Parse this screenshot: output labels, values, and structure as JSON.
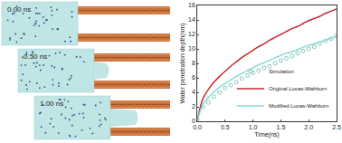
{
  "snapshots": {
    "labels": [
      "0.00 ns",
      "0.50 ns",
      "1.00 ns"
    ]
  },
  "chart_data": {
    "type": "line",
    "x_label": "Time(ns)",
    "y_label": "Water penetration depth(nm)",
    "x": [
      0,
      0.1,
      0.2,
      0.3,
      0.4,
      0.5,
      0.6,
      0.7,
      0.8,
      0.9,
      1.0,
      1.1,
      1.2,
      1.3,
      1.4,
      1.5,
      1.6,
      1.7,
      1.8,
      1.9,
      2.0,
      2.1,
      2.2,
      2.3,
      2.4,
      2.5
    ],
    "series": [
      {
        "name": "Simulation",
        "type": "scatter",
        "marker": "circle-open",
        "color": "#6fb8a8",
        "values": [
          0.3,
          2.0,
          2.6,
          3.4,
          4.0,
          4.6,
          5.0,
          5.4,
          5.9,
          6.3,
          6.7,
          7.0,
          7.4,
          7.6,
          8.0,
          8.4,
          8.7,
          9.0,
          9.4,
          9.7,
          10.0,
          10.3,
          10.7,
          11.1,
          11.4,
          11.8
        ]
      },
      {
        "name": "Original Lucas-Wahburn",
        "type": "line",
        "line_style": "solid",
        "color": "#c8282e",
        "values": [
          0,
          3.1,
          4.4,
          5.4,
          6.2,
          6.9,
          7.6,
          8.2,
          8.8,
          9.3,
          9.8,
          10.3,
          10.7,
          11.2,
          11.6,
          12.0,
          12.4,
          12.8,
          13.1,
          13.5,
          13.9,
          14.2,
          14.5,
          14.9,
          15.2,
          15.5
        ]
      },
      {
        "name": "Modified Lucas-Wahburn",
        "type": "line",
        "line_style": "solid",
        "color": "#86dcd6",
        "values": [
          0,
          2.3,
          3.3,
          4.1,
          4.7,
          5.2,
          5.7,
          6.2,
          6.6,
          7.0,
          7.4,
          7.8,
          8.1,
          8.4,
          8.8,
          9.1,
          9.4,
          9.6,
          9.9,
          10.2,
          10.5,
          10.7,
          11.0,
          11.2,
          11.5,
          11.7
        ]
      }
    ],
    "xlim": [
      0,
      2.5
    ],
    "xticks": [
      {
        "value": 0,
        "label": "0.0"
      },
      {
        "value": 0.5,
        "label": "0.5"
      },
      {
        "value": 1,
        "label": "1.0"
      },
      {
        "value": 1.5,
        "label": "1.5"
      },
      {
        "value": 2,
        "label": "2.0"
      },
      {
        "value": 2.5,
        "label": "2.5"
      }
    ],
    "ylim": [
      0,
      16
    ],
    "yticks": [
      0,
      2,
      4,
      6,
      8,
      10,
      12,
      14,
      16
    ],
    "grid": false,
    "legend": "bottom right"
  }
}
